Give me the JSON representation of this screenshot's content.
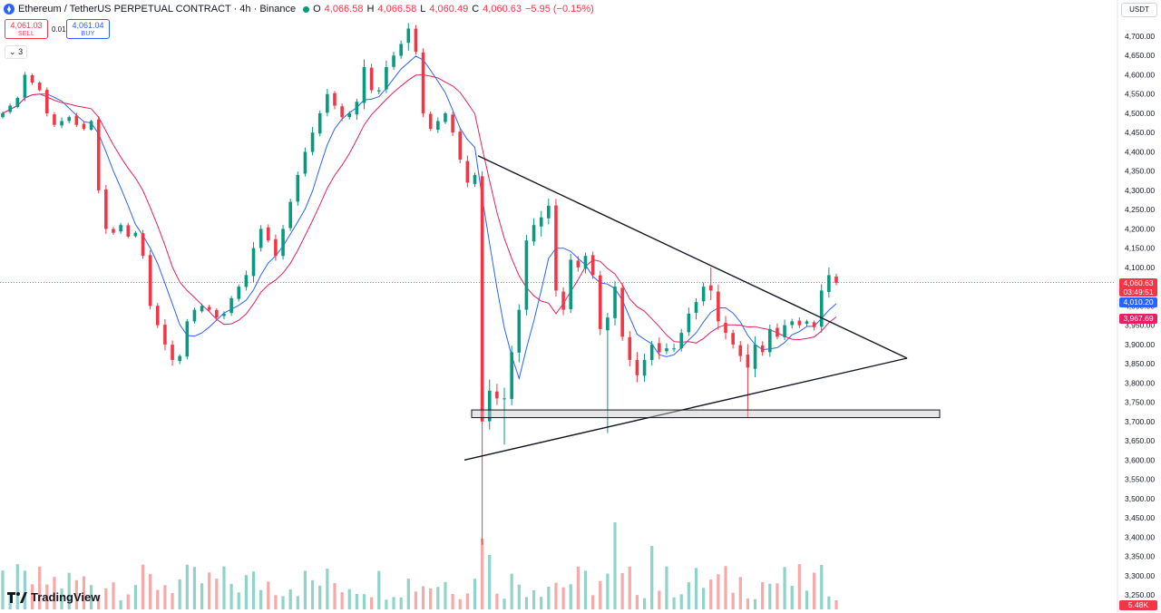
{
  "legend": {
    "symbol": "Ethereum / TetherUS PERPETUAL CONTRACT · 4h · Binance",
    "o_label": "O",
    "o": "4,066.58",
    "h_label": "H",
    "h": "4,066.58",
    "l_label": "L",
    "l": "4,060.49",
    "c_label": "C",
    "c": "4,060.63",
    "change": "−5.95 (−0.15%)"
  },
  "trade": {
    "sell_price": "4,061.03",
    "sell_label": "SELL",
    "spread": "0.01",
    "buy_price": "4,061.04",
    "buy_label": "BUY"
  },
  "indicator_toggle": "3",
  "currency": "USDT",
  "price_tags": {
    "last": "4,060.63",
    "countdown": "03:49:51",
    "ma_fast": "4,010.20",
    "ma_slow": "3,967.69",
    "volume": "5.48K"
  },
  "logo_text": "TradingView",
  "colors": {
    "up": "#089981",
    "down": "#f23645",
    "ma_fast": "#2962ff",
    "ma_slow": "#e91e63",
    "volume_up": "#8fd3c9",
    "volume_down": "#f7a8a8"
  },
  "chart_data": {
    "type": "candlestick",
    "title": "Ethereum / TetherUS PERPETUAL CONTRACT · 4h · Binance",
    "y_tick_labels": [
      "4,700.00",
      "4,650.00",
      "4,600.00",
      "4,550.00",
      "4,500.00",
      "4,450.00",
      "4,400.00",
      "4,350.00",
      "4,300.00",
      "4,250.00",
      "4,200.00",
      "4,150.00",
      "4,100.00",
      "4,050.00",
      "4,000.00",
      "3,950.00",
      "3,900.00",
      "3,850.00",
      "3,800.00",
      "3,750.00",
      "3,700.00",
      "3,650.00",
      "3,600.00",
      "3,550.00",
      "3,500.00",
      "3,450.00",
      "3,400.00",
      "3,350.00",
      "3,300.00",
      "3,250.00"
    ],
    "ylim": [
      3225,
      4735
    ],
    "close_path": [
      4500,
      4520,
      4540,
      4600,
      4580,
      4560,
      4500,
      4470,
      4480,
      4490,
      4470,
      4460,
      4480,
      4300,
      4200,
      4190,
      4210,
      4180,
      4190,
      4130,
      4000,
      3950,
      3900,
      3860,
      3870,
      3960,
      3990,
      4000,
      3990,
      3970,
      3980,
      4020,
      4050,
      4080,
      4150,
      4200,
      4170,
      4130,
      4200,
      4270,
      4340,
      4400,
      4450,
      4500,
      4550,
      4520,
      4490,
      4500,
      4530,
      4620,
      4560,
      4560,
      4620,
      4650,
      4680,
      4720,
      4660,
      4500,
      4460,
      4480,
      4500,
      4450,
      4380,
      4320,
      4340,
      3700,
      3780,
      3760,
      3760,
      3880,
      3990,
      4170,
      4210,
      4230,
      4260,
      4040,
      3990,
      4120,
      4100,
      4130,
      4080,
      3940,
      3970,
      4050,
      3920,
      3860,
      3820,
      3860,
      3900,
      3880,
      3890,
      3890,
      3930,
      3980,
      4010,
      4050,
      4040,
      3960,
      3930,
      3900,
      3870,
      3840,
      3900,
      3880,
      3940,
      3920,
      3950,
      3960,
      3950,
      3960,
      3945,
      4040,
      4080,
      4060
    ],
    "ma_fast_last": 4010.2,
    "ma_slow_last": 3967.69,
    "volume_last": "5.48K",
    "drawings": {
      "upper_trendline": [
        [
          0,
          4390
        ],
        [
          1,
          3935
        ]
      ],
      "lower_trendline": [
        [
          0,
          3600
        ],
        [
          1,
          3865
        ]
      ],
      "support_zone": [
        3710,
        3730
      ]
    },
    "grid": false,
    "legend": "top-left"
  }
}
